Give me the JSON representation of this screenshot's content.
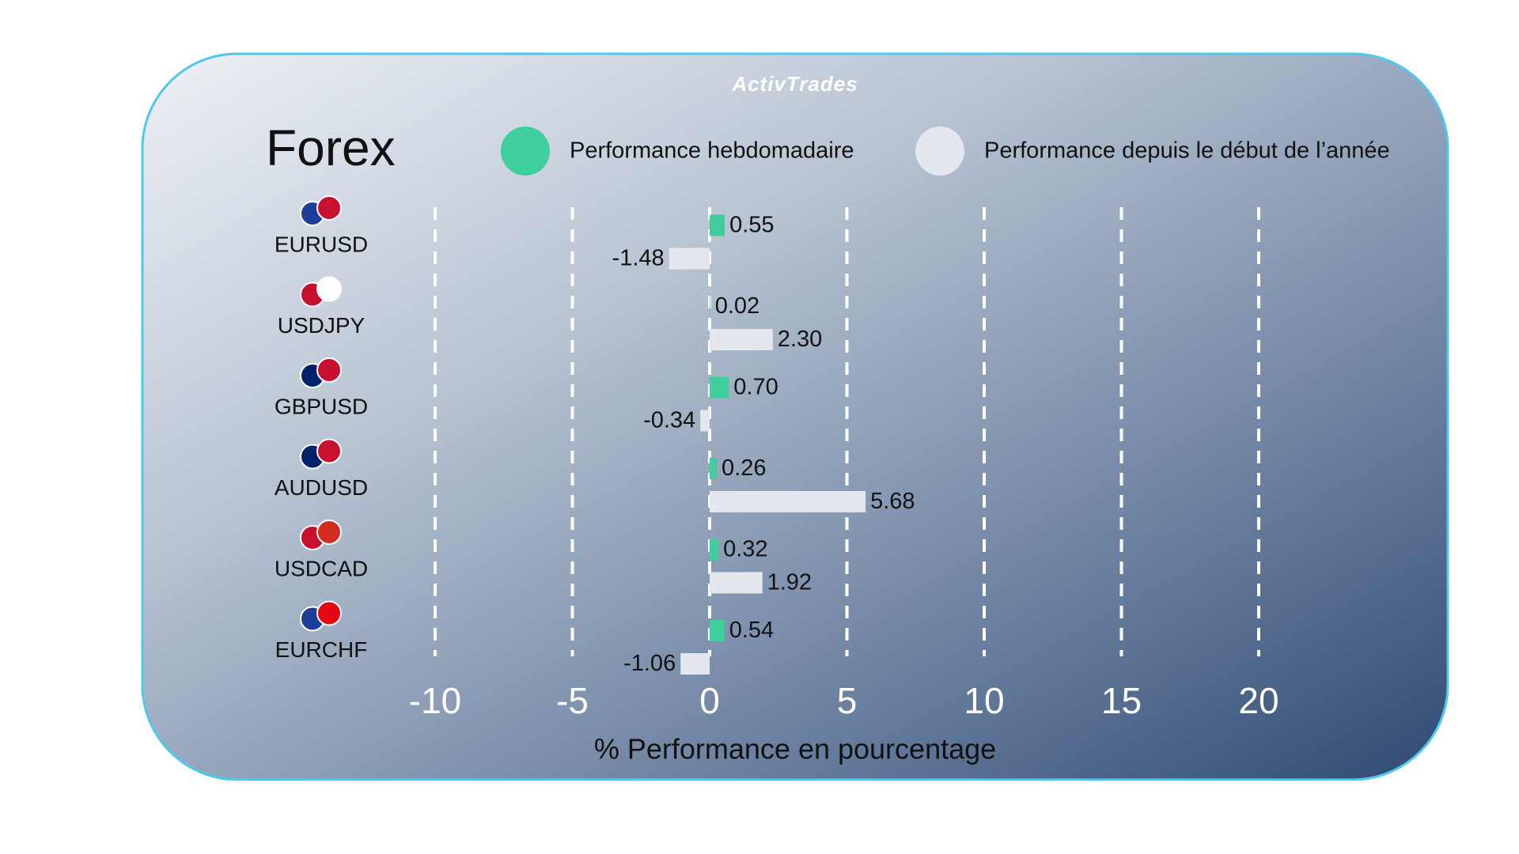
{
  "chart_data": {
    "type": "bar",
    "orientation": "horizontal",
    "logo": "ActivTrades",
    "title": "Forex",
    "x_label": "% Performance en pourcentage",
    "categories": [
      "EURUSD",
      "USDJPY",
      "GBPUSD",
      "AUDUSD",
      "USDCAD",
      "EURCHF"
    ],
    "series": [
      {
        "name": "Performance hebdomadaire",
        "color": "#3ecf9d",
        "values": [
          0.55,
          0.02,
          0.7,
          0.26,
          0.32,
          0.54
        ],
        "value_labels": [
          "0.55",
          "0.02",
          "0.70",
          "0.26",
          "0.32",
          "0.54"
        ]
      },
      {
        "name": "Performance depuis le début de l’année",
        "color": "#e4e7ee",
        "values": [
          -1.48,
          2.3,
          -0.34,
          5.68,
          1.92,
          -1.06
        ],
        "value_labels": [
          "-1.48",
          "2.30",
          "-0.34",
          "5.68",
          "1.92",
          "-1.06"
        ]
      }
    ],
    "xlim": [
      -10,
      20
    ],
    "xticks": [
      -10,
      -5,
      0,
      5,
      10,
      15,
      20
    ],
    "grid": true
  }
}
